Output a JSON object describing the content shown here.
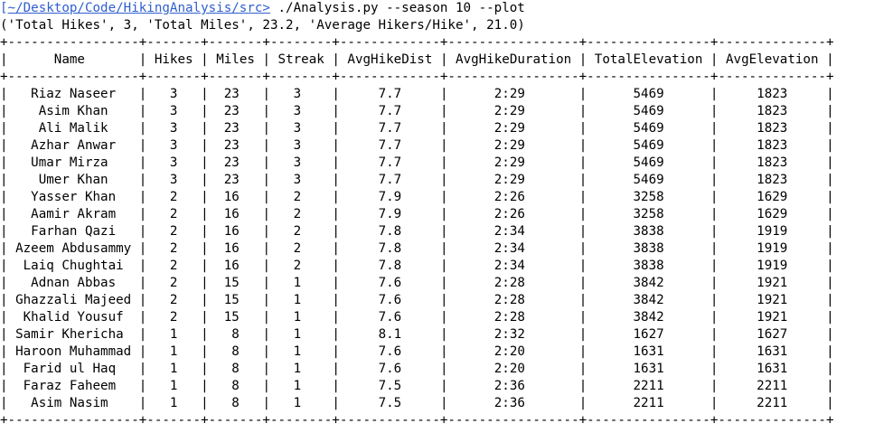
{
  "terminal": {
    "prompt_tilde": "[",
    "prompt_path": "~/Desktop/Code/HikingAnalysis/src>",
    "command": " ./Analysis.py --season 10 --plot",
    "summary_output": "('Total Hikes', 3, 'Total Miles', 23.2, 'Average Hikers/Hike', 21.0)"
  },
  "table": {
    "columns": [
      "Name",
      "Hikes",
      "Miles",
      "Streak",
      "AvgHikeDist",
      "AvgHikeDuration",
      "TotalElevation",
      "AvgElevation"
    ],
    "rows": [
      [
        "Riaz Naseer",
        "3",
        "23",
        "3",
        "7.7",
        "2:29",
        "5469",
        "1823"
      ],
      [
        "Asim Khan",
        "3",
        "23",
        "3",
        "7.7",
        "2:29",
        "5469",
        "1823"
      ],
      [
        "Ali Malik",
        "3",
        "23",
        "3",
        "7.7",
        "2:29",
        "5469",
        "1823"
      ],
      [
        "Azhar Anwar",
        "3",
        "23",
        "3",
        "7.7",
        "2:29",
        "5469",
        "1823"
      ],
      [
        "Umar Mirza",
        "3",
        "23",
        "3",
        "7.7",
        "2:29",
        "5469",
        "1823"
      ],
      [
        "Umer Khan",
        "3",
        "23",
        "3",
        "7.7",
        "2:29",
        "5469",
        "1823"
      ],
      [
        "Yasser Khan",
        "2",
        "16",
        "2",
        "7.9",
        "2:26",
        "3258",
        "1629"
      ],
      [
        "Aamir Akram",
        "2",
        "16",
        "2",
        "7.9",
        "2:26",
        "3258",
        "1629"
      ],
      [
        "Farhan Qazi",
        "2",
        "16",
        "2",
        "7.8",
        "2:34",
        "3838",
        "1919"
      ],
      [
        "Azeem Abdusammy",
        "2",
        "16",
        "2",
        "7.8",
        "2:34",
        "3838",
        "1919"
      ],
      [
        "Laiq Chughtai",
        "2",
        "16",
        "2",
        "7.8",
        "2:34",
        "3838",
        "1919"
      ],
      [
        "Adnan Abbas",
        "2",
        "15",
        "1",
        "7.6",
        "2:28",
        "3842",
        "1921"
      ],
      [
        "Ghazzali Majeed",
        "2",
        "15",
        "1",
        "7.6",
        "2:28",
        "3842",
        "1921"
      ],
      [
        "Khalid Yousuf",
        "2",
        "15",
        "1",
        "7.6",
        "2:28",
        "3842",
        "1921"
      ],
      [
        "Samir Khericha",
        "1",
        "8",
        "1",
        "8.1",
        "2:32",
        "1627",
        "1627"
      ],
      [
        "Haroon Muhammad",
        "1",
        "8",
        "1",
        "7.6",
        "2:20",
        "1631",
        "1631"
      ],
      [
        "Farid ul Haq",
        "1",
        "8",
        "1",
        "7.6",
        "2:20",
        "1631",
        "1631"
      ],
      [
        "Faraz Faheem",
        "1",
        "8",
        "1",
        "7.5",
        "2:36",
        "2211",
        "2211"
      ],
      [
        "Asim Nasim",
        "1",
        "8",
        "1",
        "7.5",
        "2:36",
        "2211",
        "2211"
      ]
    ]
  },
  "colors": {
    "prompt": "#2f5fd0",
    "text": "#000000",
    "background": "#ffffff"
  }
}
